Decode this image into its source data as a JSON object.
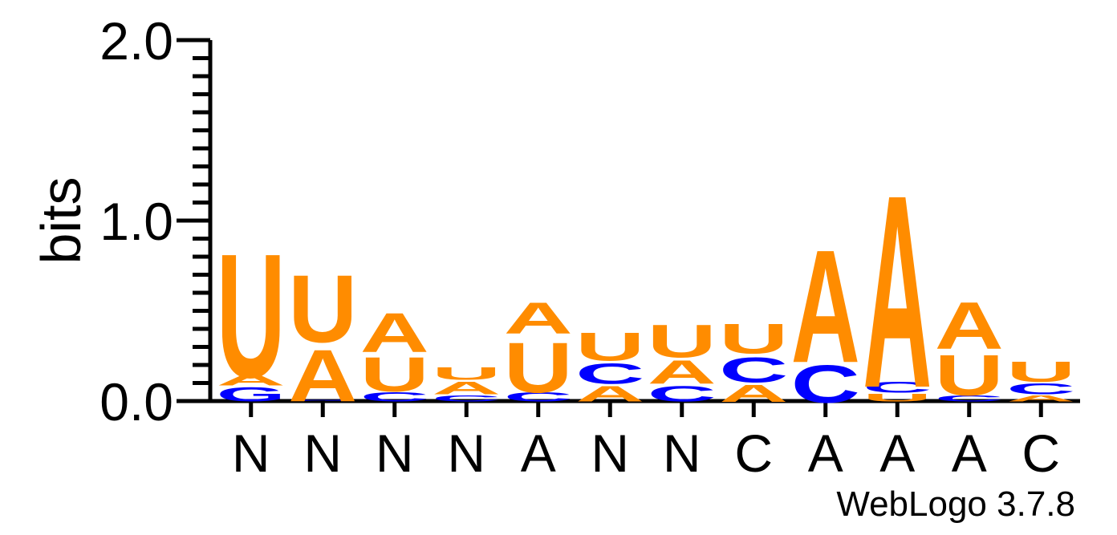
{
  "colors": {
    "A": "#ff8c00",
    "U": "#ff8c00",
    "C": "#0000ff",
    "G": "#0000ff"
  },
  "footer": "WebLogo 3.7.8",
  "chart_data": {
    "type": "sequence-logo",
    "ylabel": "bits",
    "ylim": [
      0,
      2
    ],
    "yticks": [
      "0.0",
      "1.0",
      "2.0"
    ],
    "positions": [
      {
        "label": "N",
        "stack": [
          {
            "letter": "G",
            "bits": 0.09
          },
          {
            "letter": "A",
            "bits": 0.07
          },
          {
            "letter": "U",
            "bits": 0.79
          }
        ]
      },
      {
        "label": "N",
        "stack": [
          {
            "letter": "G",
            "bits": 0.01
          },
          {
            "letter": "A",
            "bits": 0.33
          },
          {
            "letter": "U",
            "bits": 0.43
          }
        ]
      },
      {
        "label": "N",
        "stack": [
          {
            "letter": "C",
            "bits": 0.06
          },
          {
            "letter": "U",
            "bits": 0.22
          },
          {
            "letter": "A",
            "bits": 0.25
          }
        ]
      },
      {
        "label": "N",
        "stack": [
          {
            "letter": "C",
            "bits": 0.04
          },
          {
            "letter": "A",
            "bits": 0.08
          },
          {
            "letter": "U",
            "bits": 0.08
          }
        ]
      },
      {
        "label": "A",
        "stack": [
          {
            "letter": "C",
            "bits": 0.06
          },
          {
            "letter": "U",
            "bits": 0.32
          },
          {
            "letter": "A",
            "bits": 0.2
          }
        ]
      },
      {
        "label": "N",
        "stack": [
          {
            "letter": "A",
            "bits": 0.1
          },
          {
            "letter": "C",
            "bits": 0.13
          },
          {
            "letter": "U",
            "bits": 0.18
          }
        ]
      },
      {
        "label": "N",
        "stack": [
          {
            "letter": "C",
            "bits": 0.1
          },
          {
            "letter": "A",
            "bits": 0.15
          },
          {
            "letter": "U",
            "bits": 0.21
          }
        ]
      },
      {
        "label": "C",
        "stack": [
          {
            "letter": "A",
            "bits": 0.11
          },
          {
            "letter": "C",
            "bits": 0.16
          },
          {
            "letter": "U",
            "bits": 0.19
          }
        ]
      },
      {
        "label": "A",
        "stack": [
          {
            "letter": "C",
            "bits": 0.24
          },
          {
            "letter": "A",
            "bits": 0.72
          }
        ]
      },
      {
        "label": "A",
        "stack": [
          {
            "letter": "U",
            "bits": 0.05
          },
          {
            "letter": "C",
            "bits": 0.07
          },
          {
            "letter": "A",
            "bits": 1.23
          }
        ]
      },
      {
        "label": "A",
        "stack": [
          {
            "letter": "C",
            "bits": 0.04
          },
          {
            "letter": "U",
            "bits": 0.26
          },
          {
            "letter": "A",
            "bits": 0.3
          }
        ]
      },
      {
        "label": "C",
        "stack": [
          {
            "letter": "A",
            "bits": 0.04
          },
          {
            "letter": "C",
            "bits": 0.07
          },
          {
            "letter": "U",
            "bits": 0.13
          }
        ]
      }
    ]
  }
}
